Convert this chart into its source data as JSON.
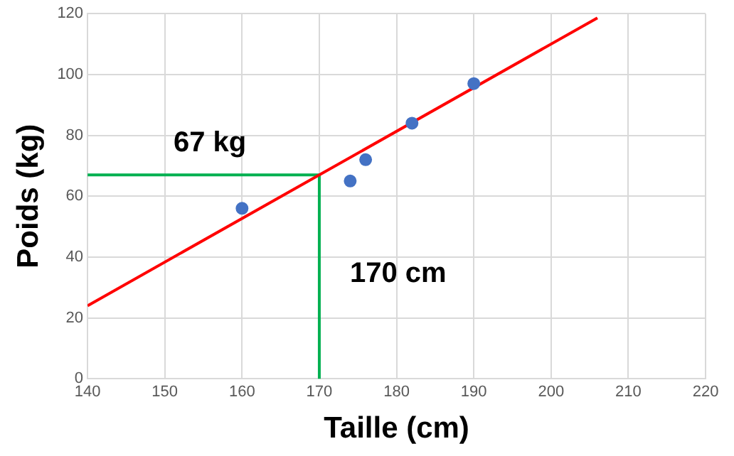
{
  "chart_data": {
    "type": "scatter",
    "xlabel": "Taille (cm)",
    "ylabel": "Poids (kg)",
    "xlim": [
      140,
      220
    ],
    "xticks": [
      140,
      150,
      160,
      170,
      180,
      190,
      200,
      210,
      220
    ],
    "ylim": [
      0,
      120
    ],
    "yticks": [
      0,
      20,
      40,
      60,
      80,
      100,
      120
    ],
    "grid": true,
    "series": [
      {
        "type": "scatter",
        "color": "#4472c4",
        "marker": "circle",
        "x": [
          160,
          174,
          176,
          182,
          190
        ],
        "values": [
          56,
          65,
          72,
          84,
          97
        ]
      },
      {
        "type": "line",
        "color": "#ff0000",
        "marker": "none",
        "x": [
          140,
          206
        ],
        "values": [
          24,
          118.6
        ]
      },
      {
        "type": "line",
        "color": "#00b050",
        "marker": "none",
        "x": [
          140,
          170,
          170
        ],
        "values": [
          67,
          67,
          0
        ]
      }
    ],
    "annotations": [
      "67 kg",
      "170 cm"
    ]
  }
}
